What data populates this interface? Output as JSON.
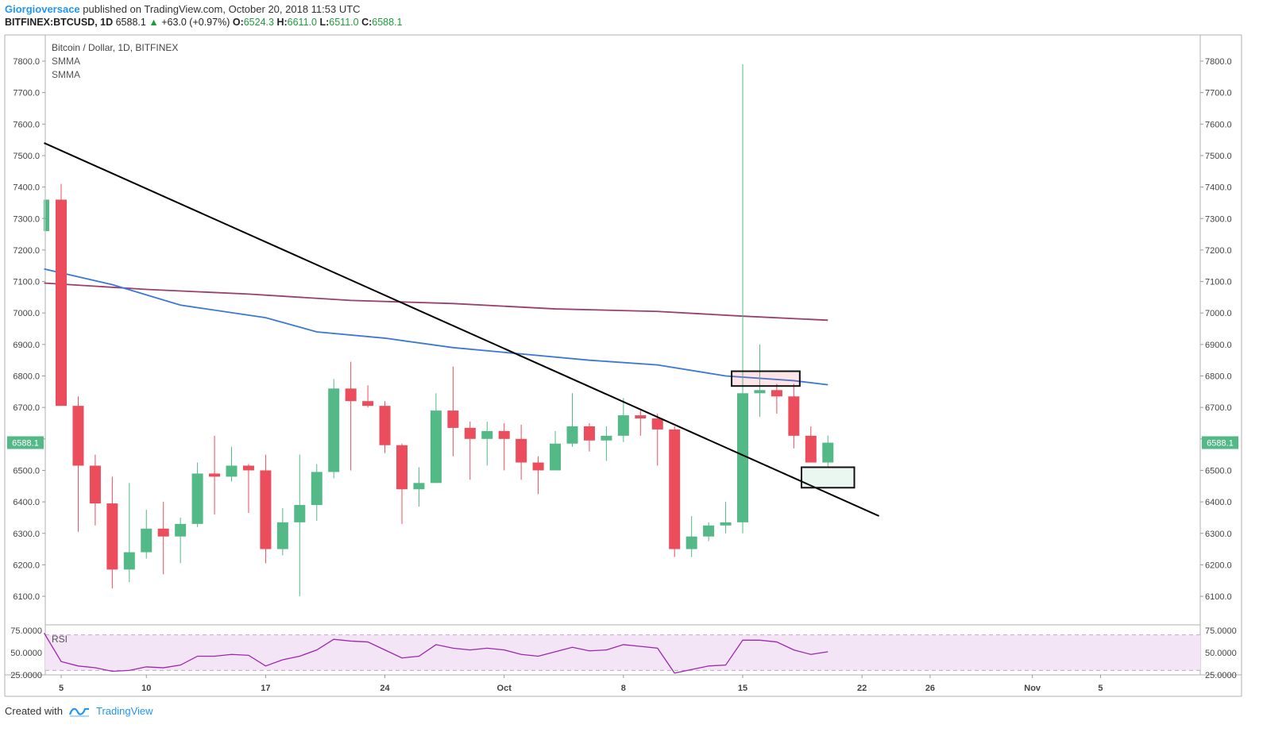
{
  "header": {
    "author": "Giorgioversace",
    "published_text": " published on TradingView.com, October 20, 2018 11:53 UTC",
    "symbol": "BITFINEX:BTCUSD, 1D",
    "last": "6588.1",
    "change": "+63.0 (+0.97%)",
    "o_label": "O:",
    "o_value": "6524.3",
    "h_label": "H:",
    "h_value": "6611.0",
    "l_label": "L:",
    "l_value": "6511.0",
    "c_label": "C:",
    "c_value": "6588.1"
  },
  "legend": {
    "title": "Bitcoin / Dollar, 1D, BITFINEX",
    "indicator1": "SMMA",
    "indicator2": "SMMA",
    "rsi_label": "RSI"
  },
  "footer": {
    "created_with": "Created with",
    "brand": "TradingView"
  },
  "colors": {
    "up": "#53b987",
    "down": "#eb4d5c",
    "smma_fast": "#3a78d8",
    "smma_slow": "#9b3d6e",
    "rsi_line": "#9c27b0",
    "rsi_band": "#f3e5f5",
    "last_price_bg": "#53b987",
    "trendline": "#000000"
  },
  "chart_data": {
    "type": "candlestick",
    "y_range": [
      6000,
      7850
    ],
    "y_ticks": [
      "7800.0",
      "7700.0",
      "7600.0",
      "7500.0",
      "7400.0",
      "7300.0",
      "7200.0",
      "7100.0",
      "7000.0",
      "6900.0",
      "6800.0",
      "6700.0",
      "6600.0",
      "6500.0",
      "6400.0",
      "6300.0",
      "6200.0",
      "6100.0"
    ],
    "last_price_label": "6588.1",
    "x_ticks": [
      {
        "label": "5",
        "day": 5
      },
      {
        "label": "10",
        "day": 10
      },
      {
        "label": "17",
        "day": 17
      },
      {
        "label": "24",
        "day": 24
      },
      {
        "label": "Oct",
        "day": 31
      },
      {
        "label": "8",
        "day": 38
      },
      {
        "label": "15",
        "day": 45
      },
      {
        "label": "22",
        "day": 52
      },
      {
        "label": "26",
        "day": 56
      },
      {
        "label": "Nov",
        "day": 62
      },
      {
        "label": "5",
        "day": 66
      }
    ],
    "candles": [
      {
        "day": 4,
        "o": 7260,
        "h": 7360,
        "l": 7260,
        "c": 7360
      },
      {
        "day": 5,
        "o": 7360,
        "h": 7410,
        "l": 6705,
        "c": 6705
      },
      {
        "day": 6,
        "o": 6705,
        "h": 6735,
        "l": 6305,
        "c": 6515
      },
      {
        "day": 7,
        "o": 6515,
        "h": 6550,
        "l": 6325,
        "c": 6395
      },
      {
        "day": 8,
        "o": 6395,
        "h": 6480,
        "l": 6125,
        "c": 6185
      },
      {
        "day": 9,
        "o": 6185,
        "h": 6460,
        "l": 6145,
        "c": 6240
      },
      {
        "day": 10,
        "o": 6240,
        "h": 6375,
        "l": 6220,
        "c": 6315
      },
      {
        "day": 11,
        "o": 6315,
        "h": 6400,
        "l": 6170,
        "c": 6290
      },
      {
        "day": 12,
        "o": 6290,
        "h": 6350,
        "l": 6205,
        "c": 6330
      },
      {
        "day": 13,
        "o": 6330,
        "h": 6525,
        "l": 6320,
        "c": 6490
      },
      {
        "day": 14,
        "o": 6490,
        "h": 6610,
        "l": 6360,
        "c": 6480
      },
      {
        "day": 15,
        "o": 6480,
        "h": 6575,
        "l": 6465,
        "c": 6515
      },
      {
        "day": 16,
        "o": 6515,
        "h": 6520,
        "l": 6365,
        "c": 6500
      },
      {
        "day": 17,
        "o": 6500,
        "h": 6550,
        "l": 6205,
        "c": 6250
      },
      {
        "day": 18,
        "o": 6250,
        "h": 6380,
        "l": 6230,
        "c": 6335
      },
      {
        "day": 19,
        "o": 6335,
        "h": 6550,
        "l": 6100,
        "c": 6390
      },
      {
        "day": 20,
        "o": 6390,
        "h": 6520,
        "l": 6340,
        "c": 6495
      },
      {
        "day": 21,
        "o": 6495,
        "h": 6790,
        "l": 6475,
        "c": 6760
      },
      {
        "day": 22,
        "o": 6760,
        "h": 6845,
        "l": 6500,
        "c": 6720
      },
      {
        "day": 23,
        "o": 6720,
        "h": 6770,
        "l": 6700,
        "c": 6705
      },
      {
        "day": 24,
        "o": 6705,
        "h": 6720,
        "l": 6555,
        "c": 6580
      },
      {
        "day": 25,
        "o": 6580,
        "h": 6585,
        "l": 6330,
        "c": 6440
      },
      {
        "day": 26,
        "o": 6440,
        "h": 6510,
        "l": 6385,
        "c": 6460
      },
      {
        "day": 27,
        "o": 6460,
        "h": 6745,
        "l": 6460,
        "c": 6690
      },
      {
        "day": 28,
        "o": 6690,
        "h": 6830,
        "l": 6545,
        "c": 6635
      },
      {
        "day": 29,
        "o": 6635,
        "h": 6655,
        "l": 6470,
        "c": 6600
      },
      {
        "day": 30,
        "o": 6600,
        "h": 6655,
        "l": 6515,
        "c": 6625
      },
      {
        "day": 31,
        "o": 6625,
        "h": 6650,
        "l": 6500,
        "c": 6600
      },
      {
        "day": 32,
        "o": 6600,
        "h": 6645,
        "l": 6470,
        "c": 6525
      },
      {
        "day": 33,
        "o": 6525,
        "h": 6545,
        "l": 6425,
        "c": 6500
      },
      {
        "day": 34,
        "o": 6500,
        "h": 6625,
        "l": 6500,
        "c": 6585
      },
      {
        "day": 35,
        "o": 6585,
        "h": 6745,
        "l": 6575,
        "c": 6640
      },
      {
        "day": 36,
        "o": 6640,
        "h": 6650,
        "l": 6560,
        "c": 6595
      },
      {
        "day": 37,
        "o": 6595,
        "h": 6640,
        "l": 6530,
        "c": 6610
      },
      {
        "day": 38,
        "o": 6610,
        "h": 6730,
        "l": 6590,
        "c": 6675
      },
      {
        "day": 39,
        "o": 6675,
        "h": 6690,
        "l": 6610,
        "c": 6665
      },
      {
        "day": 40,
        "o": 6665,
        "h": 6680,
        "l": 6515,
        "c": 6630
      },
      {
        "day": 41,
        "o": 6630,
        "h": 6640,
        "l": 6225,
        "c": 6250
      },
      {
        "day": 42,
        "o": 6250,
        "h": 6355,
        "l": 6225,
        "c": 6290
      },
      {
        "day": 43,
        "o": 6290,
        "h": 6335,
        "l": 6275,
        "c": 6325
      },
      {
        "day": 44,
        "o": 6325,
        "h": 6400,
        "l": 6300,
        "c": 6335
      },
      {
        "day": 45,
        "o": 6335,
        "h": 7790,
        "l": 6300,
        "c": 6745
      },
      {
        "day": 46,
        "o": 6745,
        "h": 6900,
        "l": 6670,
        "c": 6755
      },
      {
        "day": 47,
        "o": 6755,
        "h": 6775,
        "l": 6680,
        "c": 6735
      },
      {
        "day": 48,
        "o": 6735,
        "h": 6775,
        "l": 6570,
        "c": 6610
      },
      {
        "day": 49,
        "o": 6610,
        "h": 6640,
        "l": 6525,
        "c": 6525
      },
      {
        "day": 50,
        "o": 6525,
        "h": 6611,
        "l": 6511,
        "c": 6588
      }
    ],
    "smma_fast": [
      {
        "day": 4,
        "v": 7140
      },
      {
        "day": 8,
        "v": 7090
      },
      {
        "day": 12,
        "v": 7025
      },
      {
        "day": 17,
        "v": 6985
      },
      {
        "day": 20,
        "v": 6940
      },
      {
        "day": 24,
        "v": 6920
      },
      {
        "day": 28,
        "v": 6890
      },
      {
        "day": 32,
        "v": 6870
      },
      {
        "day": 36,
        "v": 6850
      },
      {
        "day": 40,
        "v": 6835
      },
      {
        "day": 44,
        "v": 6800
      },
      {
        "day": 48,
        "v": 6785
      },
      {
        "day": 50,
        "v": 6772
      }
    ],
    "smma_slow": [
      {
        "day": 4,
        "v": 7095
      },
      {
        "day": 10,
        "v": 7075
      },
      {
        "day": 16,
        "v": 7060
      },
      {
        "day": 22,
        "v": 7040
      },
      {
        "day": 28,
        "v": 7030
      },
      {
        "day": 34,
        "v": 7013
      },
      {
        "day": 40,
        "v": 7005
      },
      {
        "day": 45,
        "v": 6990
      },
      {
        "day": 50,
        "v": 6977
      }
    ],
    "trendline": [
      {
        "day": 4,
        "v": 7540
      },
      {
        "day": 53,
        "v": 6355
      }
    ],
    "resistance_box": {
      "day_start": 44.35,
      "day_end": 48.35,
      "top": 6815,
      "bottom": 6768
    },
    "support_box": {
      "day_start": 48.45,
      "day_end": 51.55,
      "top": 6510,
      "bottom": 6445
    },
    "rsi": {
      "label": "RSI",
      "y_ticks": [
        "75.0000",
        "50.0000",
        "25.0000"
      ],
      "range": [
        25,
        75
      ],
      "upper_band": 70,
      "lower_band": 30,
      "points": [
        {
          "day": 4,
          "v": 72
        },
        {
          "day": 5,
          "v": 40
        },
        {
          "day": 6,
          "v": 35
        },
        {
          "day": 7,
          "v": 33
        },
        {
          "day": 8,
          "v": 29
        },
        {
          "day": 9,
          "v": 30
        },
        {
          "day": 10,
          "v": 34
        },
        {
          "day": 11,
          "v": 33
        },
        {
          "day": 12,
          "v": 36
        },
        {
          "day": 13,
          "v": 46
        },
        {
          "day": 14,
          "v": 46
        },
        {
          "day": 15,
          "v": 48
        },
        {
          "day": 16,
          "v": 47
        },
        {
          "day": 17,
          "v": 35
        },
        {
          "day": 18,
          "v": 42
        },
        {
          "day": 19,
          "v": 46
        },
        {
          "day": 20,
          "v": 53
        },
        {
          "day": 21,
          "v": 65
        },
        {
          "day": 22,
          "v": 63
        },
        {
          "day": 23,
          "v": 62
        },
        {
          "day": 24,
          "v": 53
        },
        {
          "day": 25,
          "v": 44
        },
        {
          "day": 26,
          "v": 46
        },
        {
          "day": 27,
          "v": 59
        },
        {
          "day": 28,
          "v": 55
        },
        {
          "day": 29,
          "v": 53
        },
        {
          "day": 30,
          "v": 55
        },
        {
          "day": 31,
          "v": 53
        },
        {
          "day": 32,
          "v": 48
        },
        {
          "day": 33,
          "v": 46
        },
        {
          "day": 34,
          "v": 51
        },
        {
          "day": 35,
          "v": 56
        },
        {
          "day": 36,
          "v": 52
        },
        {
          "day": 37,
          "v": 53
        },
        {
          "day": 38,
          "v": 59
        },
        {
          "day": 39,
          "v": 57
        },
        {
          "day": 40,
          "v": 55
        },
        {
          "day": 41,
          "v": 27
        },
        {
          "day": 42,
          "v": 31
        },
        {
          "day": 43,
          "v": 35
        },
        {
          "day": 44,
          "v": 36
        },
        {
          "day": 45,
          "v": 64
        },
        {
          "day": 46,
          "v": 64
        },
        {
          "day": 47,
          "v": 62
        },
        {
          "day": 48,
          "v": 53
        },
        {
          "day": 49,
          "v": 48
        },
        {
          "day": 50,
          "v": 51
        }
      ]
    }
  }
}
